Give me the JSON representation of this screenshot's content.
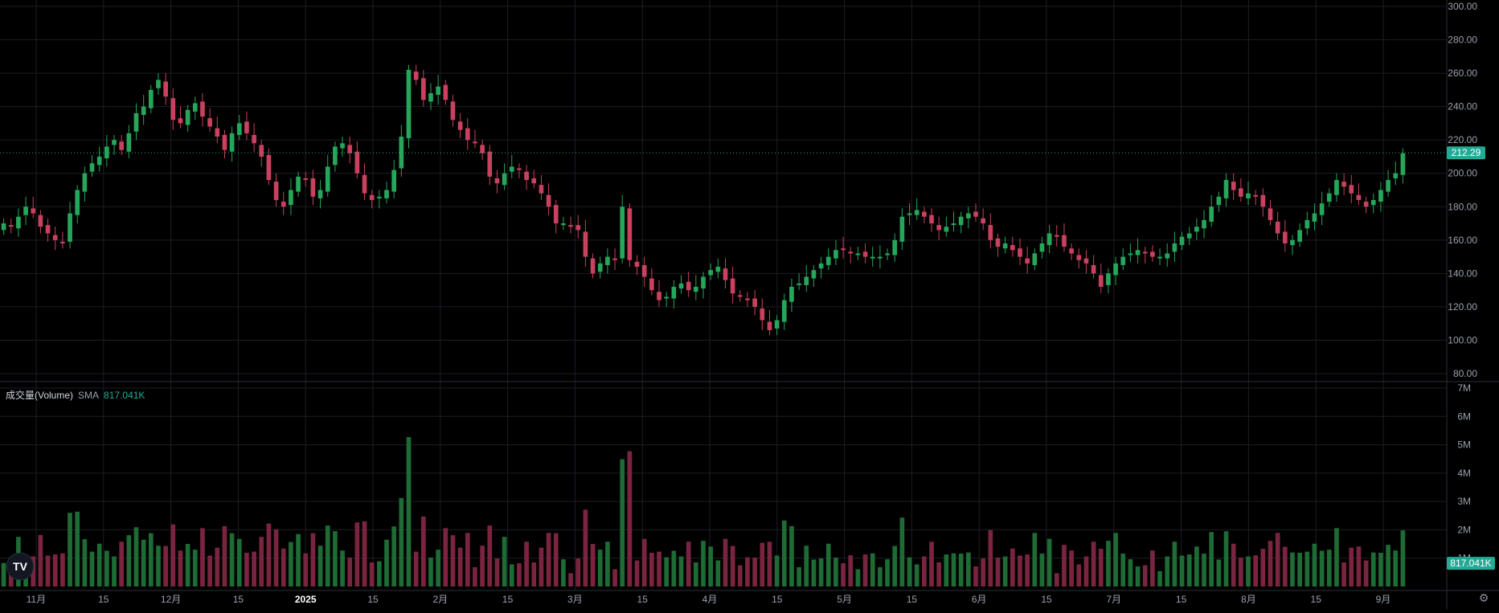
{
  "chart_data": {
    "type": "candlestick",
    "price_panel": {
      "ylim": [
        80,
        300
      ],
      "y_ticks": [
        "300.00",
        "280.00",
        "260.00",
        "240.00",
        "220.00",
        "200.00",
        "180.00",
        "160.00",
        "140.00",
        "120.00",
        "100.00",
        "80.00"
      ],
      "y_tick_values": [
        300,
        280,
        260,
        240,
        220,
        200,
        180,
        160,
        140,
        120,
        100,
        80
      ],
      "last_price": "212.29",
      "last_price_value": 212.29,
      "grid": true
    },
    "volume_panel": {
      "title": "成交量(Volume)",
      "sma_label": "SMA",
      "sma_value": "817.041K",
      "last_volume_label": "817.041K",
      "ylim": [
        0,
        7
      ],
      "unit": "M",
      "y_ticks": [
        "7M",
        "6M",
        "5M",
        "4M",
        "3M",
        "2M",
        "1M"
      ],
      "y_tick_values": [
        7,
        6,
        5,
        4,
        3,
        2,
        1
      ]
    },
    "x_ticks": [
      "11月",
      "15",
      "12月",
      "15",
      "2025",
      "15",
      "2月",
      "15",
      "3月",
      "15",
      "4月",
      "15",
      "5月",
      "15",
      "6月",
      "15",
      "7月",
      "15",
      "8月",
      "15",
      "9月"
    ],
    "x_tick_bold": [
      false,
      false,
      false,
      false,
      true,
      false,
      false,
      false,
      false,
      false,
      false,
      false,
      false,
      false,
      false,
      false,
      false,
      false,
      false,
      false,
      false
    ],
    "candles_close": [
      170,
      168,
      174,
      180,
      176,
      168,
      164,
      160,
      158,
      176,
      190,
      200,
      206,
      210,
      216,
      220,
      214,
      224,
      236,
      240,
      250,
      256,
      246,
      232,
      230,
      238,
      242,
      234,
      228,
      222,
      214,
      224,
      230,
      224,
      218,
      210,
      196,
      184,
      180,
      190,
      198,
      196,
      186,
      190,
      204,
      216,
      218,
      212,
      200,
      188,
      184,
      186,
      190,
      202,
      222,
      262,
      256,
      244,
      248,
      252,
      244,
      232,
      226,
      220,
      218,
      212,
      198,
      194,
      200,
      204,
      202,
      196,
      194,
      188,
      180,
      170,
      170,
      168,
      166,
      150,
      140,
      146,
      150,
      148,
      180,
      148,
      144,
      138,
      130,
      124,
      126,
      132,
      134,
      130,
      132,
      138,
      142,
      144,
      136,
      128,
      126,
      124,
      120,
      112,
      106,
      112,
      124,
      132,
      134,
      138,
      142,
      146,
      150,
      154,
      154,
      152,
      152,
      150,
      150,
      150,
      152,
      160,
      174,
      176,
      178,
      174,
      170,
      166,
      168,
      170,
      174,
      176,
      174,
      170,
      160,
      156,
      158,
      154,
      150,
      146,
      152,
      158,
      164,
      162,
      156,
      152,
      148,
      146,
      140,
      132,
      140,
      146,
      150,
      152,
      154,
      152,
      150,
      150,
      152,
      158,
      162,
      164,
      168,
      172,
      180,
      186,
      196,
      190,
      186,
      188,
      186,
      180,
      172,
      164,
      158,
      160,
      166,
      172,
      176,
      182,
      188,
      196,
      192,
      188,
      184,
      180,
      184,
      190,
      196,
      200,
      212
    ]
  },
  "colors": {
    "up": "#22ab94",
    "down": "#f23645",
    "up_candle": "#26a65b",
    "down_candle": "#c8415e",
    "up_volume": "#1e6b35",
    "down_volume": "#7a2540",
    "grid": "#1c1e24",
    "axis_text": "#9aa0ab",
    "price_tag": "#22ab94"
  }
}
